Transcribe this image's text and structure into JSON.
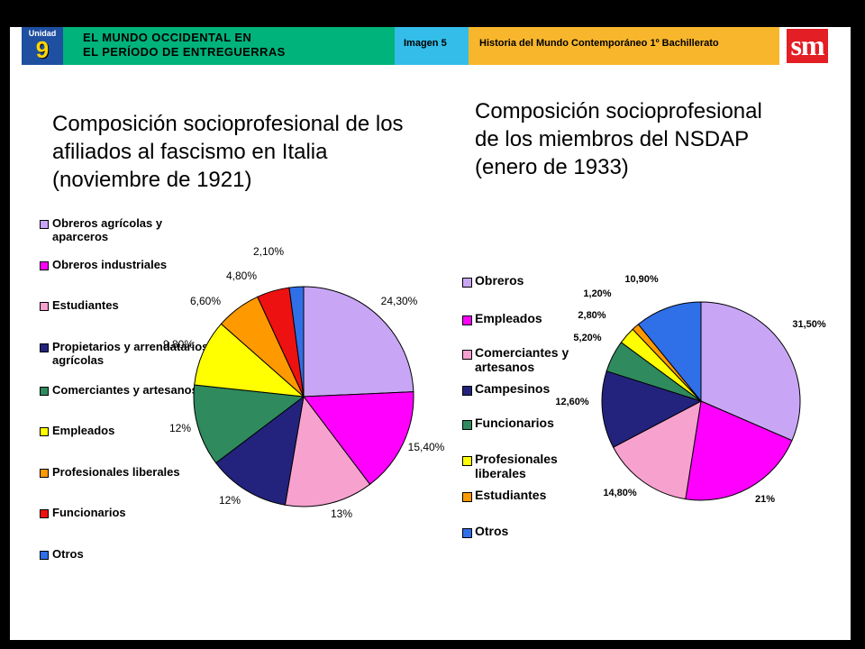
{
  "header": {
    "unit_label": "Unidad",
    "unit_number": "9",
    "unit_title_line1": "EL MUNDO OCCIDENTAL EN",
    "unit_title_line2": "EL PERÍODO DE ENTREGUERRAS",
    "image_label": "Imagen 5",
    "course_label": "Historia del Mundo Contemporáneo 1º Bachillerato",
    "logo_text": "sm"
  },
  "colors": {
    "header_unit": "#1e4fa0",
    "header_title": "#00b37a",
    "header_image": "#33bde8",
    "header_course": "#f8b62c",
    "logo": "#e31e24"
  },
  "chart_data": [
    {
      "type": "pie",
      "title": "Composición socioprofesional de los afiliados al fascismo en Italia (noviembre de 1921)",
      "title_lines": [
        "Composición socioprofesional de los",
        "afiliados al fascismo en Italia",
        "(noviembre de 1921)"
      ],
      "legend_position": "left",
      "start_angle_deg": 0,
      "slices": [
        {
          "name": "Obreros agrícolas y aparceros",
          "value": 24.3,
          "label": "24,30%",
          "color": "#c8a6f5"
        },
        {
          "name": "Obreros industriales",
          "value": 15.4,
          "label": "15,40%",
          "color": "#ff00ff"
        },
        {
          "name": "Estudiantes",
          "value": 13,
          "label": "13%",
          "color": "#f7a1cf"
        },
        {
          "name": "Propietarios y arrendatarios agrícolas",
          "value": 12,
          "label": "12%",
          "color": "#23237e"
        },
        {
          "name": "Comerciantes y artesanos",
          "value": 12,
          "label": "12%",
          "color": "#2f8a5d"
        },
        {
          "name": "Empleados",
          "value": 9.8,
          "label": "9,80%",
          "color": "#ffff00"
        },
        {
          "name": "Profesionales liberales",
          "value": 6.6,
          "label": "6,60%",
          "color": "#ff9900"
        },
        {
          "name": "Funcionarios",
          "value": 4.8,
          "label": "4,80%",
          "color": "#ee1111"
        },
        {
          "name": "Otros",
          "value": 2.1,
          "label": "2,10%",
          "color": "#2f6fe8"
        }
      ],
      "legend": [
        {
          "label": "Obreros agrícolas y aparceros",
          "color": "#c8a6f5"
        },
        {
          "label": "Obreros industriales",
          "color": "#ff00ff"
        },
        {
          "label": "Estudiantes",
          "color": "#f7a1cf"
        },
        {
          "label": "Propietarios y arrendatarios agrícolas",
          "color": "#23237e"
        },
        {
          "label": "Comerciantes y artesanos",
          "color": "#2f8a5d"
        },
        {
          "label": "Empleados",
          "color": "#ffff00"
        },
        {
          "label": "Profesionales liberales",
          "color": "#ff9900"
        },
        {
          "label": "Funcionarios",
          "color": "#ee1111"
        },
        {
          "label": "Otros",
          "color": "#2f6fe8"
        }
      ]
    },
    {
      "type": "pie",
      "title": "Composición socioprofesional de los miembros del NSDAP (enero de 1933)",
      "title_lines": [
        "Composición socioprofesional",
        "de los miembros del NSDAP",
        "(enero de 1933)"
      ],
      "legend_position": "left",
      "start_angle_deg": 0,
      "slices": [
        {
          "name": "Obreros",
          "value": 31.5,
          "label": "31,50%",
          "color": "#c8a6f5"
        },
        {
          "name": "Empleados",
          "value": 21,
          "label": "21%",
          "color": "#ff00ff"
        },
        {
          "name": "Comerciantes y artesanos",
          "value": 14.8,
          "label": "14,80%",
          "color": "#f7a1cf"
        },
        {
          "name": "Campesinos",
          "value": 12.6,
          "label": "12,60%",
          "color": "#23237e"
        },
        {
          "name": "Funcionarios",
          "value": 5.2,
          "label": "5,20%",
          "color": "#2f8a5d"
        },
        {
          "name": "Profesionales liberales",
          "value": 2.8,
          "label": "2,80%",
          "color": "#ffff00"
        },
        {
          "name": "Estudiantes",
          "value": 1.2,
          "label": "1,20%",
          "color": "#ff9900"
        },
        {
          "name": "Otros",
          "value": 10.9,
          "label": "10,90%",
          "color": "#2f6fe8"
        }
      ],
      "legend": [
        {
          "label": "Obreros",
          "color": "#c8a6f5"
        },
        {
          "label": "Empleados",
          "color": "#ff00ff"
        },
        {
          "label": "Comerciantes y artesanos",
          "color": "#f7a1cf"
        },
        {
          "label": "Campesinos",
          "color": "#23237e"
        },
        {
          "label": "Funcionarios",
          "color": "#2f8a5d"
        },
        {
          "label": "Profesionales liberales",
          "color": "#ffff00"
        },
        {
          "label": "Estudiantes",
          "color": "#ff9900"
        },
        {
          "label": "Otros",
          "color": "#2f6fe8"
        }
      ]
    }
  ]
}
